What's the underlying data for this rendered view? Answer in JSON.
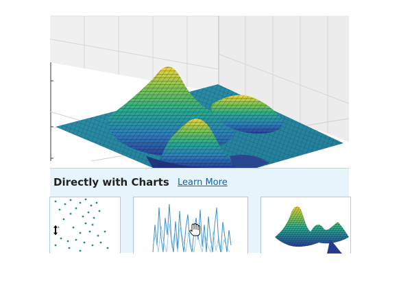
{
  "banner": {
    "title": "Directly with Charts",
    "learn_more": "Learn More"
  },
  "thumbnails": [
    {
      "name": "scatter-chart-thumbnail",
      "cursor": "resize-vertical-cursor-icon"
    },
    {
      "name": "line-chart-thumbnail",
      "cursor": "hand-cursor-icon"
    },
    {
      "name": "surface-chart-thumbnail"
    }
  ],
  "colors": {
    "banner_bg": "#e8f4fb",
    "link": "#0a63b0",
    "surface_low": "#2a3f9a",
    "surface_mid": "#27a98f",
    "surface_high": "#f3d23a",
    "line_series": "#3a8fc8",
    "scatter_points": "#1f8a8c"
  }
}
